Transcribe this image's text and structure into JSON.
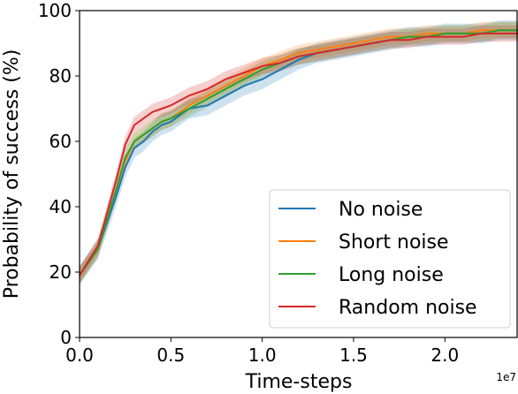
{
  "chart_data": {
    "type": "line",
    "xlabel": "Time-steps",
    "ylabel": "Probability of success (%)",
    "x_offset_label": "1e7",
    "xlim": [
      0,
      24000000
    ],
    "ylim": [
      0,
      100
    ],
    "x_ticks": [
      0,
      5000000,
      10000000,
      15000000,
      20000000
    ],
    "x_tick_labels": [
      "0.0",
      "0.5",
      "1.0",
      "1.5",
      "2.0"
    ],
    "y_ticks": [
      0,
      20,
      40,
      60,
      80,
      100
    ],
    "y_tick_labels": [
      "0",
      "20",
      "40",
      "60",
      "80",
      "100"
    ],
    "grid": false,
    "legend_position": "lower-right",
    "x": [
      0,
      1000000,
      2000000,
      2500000,
      3000000,
      3500000,
      4000000,
      4500000,
      5000000,
      6000000,
      7000000,
      8000000,
      9000000,
      10000000,
      11000000,
      12000000,
      13000000,
      14000000,
      15000000,
      16000000,
      17000000,
      18000000,
      19000000,
      20000000,
      21000000,
      22000000,
      23000000,
      24000000
    ],
    "series": [
      {
        "name": "No noise",
        "color": "#1f77b4",
        "values": [
          19,
          27,
          43,
          52,
          58,
          60,
          63,
          65,
          66,
          70,
          71,
          74,
          77,
          79,
          82,
          85,
          87,
          88,
          89,
          90,
          91,
          92,
          92,
          93,
          93,
          93,
          94,
          94
        ],
        "band": 3
      },
      {
        "name": "Short noise",
        "color": "#ff7f0e",
        "values": [
          19,
          27,
          45,
          54,
          60,
          62,
          64,
          66,
          67,
          71,
          74,
          77,
          80,
          83,
          85,
          87,
          88,
          89,
          90,
          91,
          92,
          92,
          93,
          93,
          93,
          94,
          94,
          94
        ],
        "band": 2.5
      },
      {
        "name": "Long noise",
        "color": "#2ca02c",
        "values": [
          19,
          27,
          45,
          55,
          60,
          62,
          64,
          66,
          67,
          70,
          73,
          76,
          79,
          82,
          84,
          86,
          87,
          88,
          89,
          90,
          91,
          92,
          92,
          93,
          93,
          93,
          94,
          94
        ],
        "band": 2.5
      },
      {
        "name": "Random noise",
        "color": "#d62728",
        "values": [
          19,
          28,
          48,
          59,
          65,
          67,
          69,
          70,
          71,
          74,
          76,
          79,
          81,
          83,
          84,
          86,
          87,
          88,
          89,
          90,
          91,
          91,
          92,
          92,
          92,
          93,
          93,
          93
        ],
        "band": 2.5
      }
    ]
  }
}
